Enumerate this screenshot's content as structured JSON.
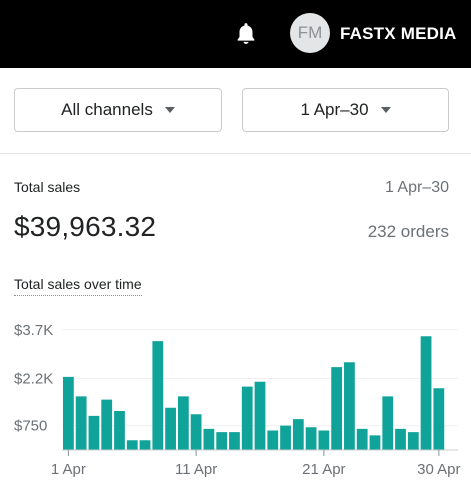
{
  "header": {
    "shop_name": "FASTX MEDIA",
    "avatar_initials": "FM",
    "notification_icon": "bell-icon",
    "background": "#000000"
  },
  "filters": {
    "channel": "All channels",
    "date_range": "1 Apr–30"
  },
  "card": {
    "title": "Total sales",
    "date_range": "1 Apr–30",
    "total": "$39,963.32",
    "orders": "232 orders",
    "chart_title": "Total sales over time"
  },
  "chart_data": {
    "type": "bar",
    "title": "Total sales over time",
    "color": "#0fa39a",
    "ylim": [
      0,
      4000
    ],
    "yticks": [
      750,
      2200,
      3700
    ],
    "ytick_labels": [
      "$750",
      "$2.2K",
      "$3.7K"
    ],
    "x_tick_labels": [
      "1 Apr",
      "11 Apr",
      "21 Apr",
      "30 Apr"
    ],
    "x_tick_days": [
      1,
      11,
      21,
      30
    ],
    "categories": [
      1,
      2,
      3,
      4,
      5,
      6,
      7,
      8,
      9,
      10,
      11,
      12,
      13,
      14,
      15,
      16,
      17,
      18,
      19,
      20,
      21,
      22,
      23,
      24,
      25,
      26,
      27,
      28,
      29,
      30,
      31
    ],
    "values": [
      2250,
      1650,
      1050,
      1550,
      1200,
      300,
      300,
      3350,
      1300,
      1650,
      1100,
      650,
      550,
      550,
      1950,
      2100,
      600,
      750,
      950,
      700,
      600,
      2550,
      2700,
      650,
      450,
      1650,
      650,
      550,
      3500,
      1900,
      0
    ]
  }
}
